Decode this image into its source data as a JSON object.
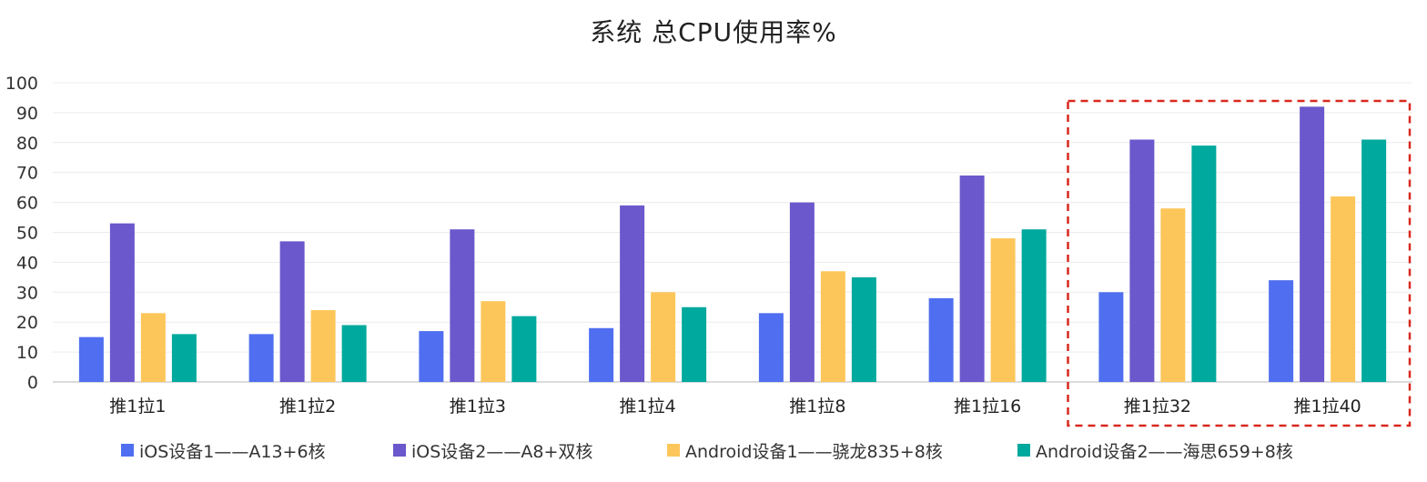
{
  "chart_data": {
    "type": "bar",
    "title": "系统 总CPU使用率%",
    "xlabel": "",
    "ylabel": "",
    "ylim": [
      0,
      100
    ],
    "yticks": [
      0,
      10,
      20,
      30,
      40,
      50,
      60,
      70,
      80,
      90,
      100
    ],
    "grid": true,
    "legend_position": "bottom",
    "categories": [
      "推1拉1",
      "推1拉2",
      "推1拉3",
      "推1拉4",
      "推1拉8",
      "推1拉16",
      "推1拉32",
      "推1拉40"
    ],
    "series": [
      {
        "name": "iOS设备1——A13+6核",
        "color": "#4f6ff0",
        "values": [
          15,
          16,
          17,
          18,
          23,
          28,
          30,
          34
        ]
      },
      {
        "name": "iOS设备2——A8+双核",
        "color": "#6a58cc",
        "values": [
          53,
          47,
          51,
          59,
          60,
          69,
          81,
          92
        ]
      },
      {
        "name": "Android设备1——骁龙835+8核",
        "color": "#fdc65a",
        "values": [
          23,
          24,
          27,
          30,
          37,
          48,
          58,
          62
        ]
      },
      {
        "name": "Android设备2——海思659+8核",
        "color": "#00a99d",
        "values": [
          16,
          19,
          22,
          25,
          35,
          51,
          79,
          81
        ]
      }
    ],
    "highlight": {
      "categories": [
        "推1拉32",
        "推1拉40"
      ],
      "style": "dashed-box",
      "color": "#d9281e"
    }
  }
}
